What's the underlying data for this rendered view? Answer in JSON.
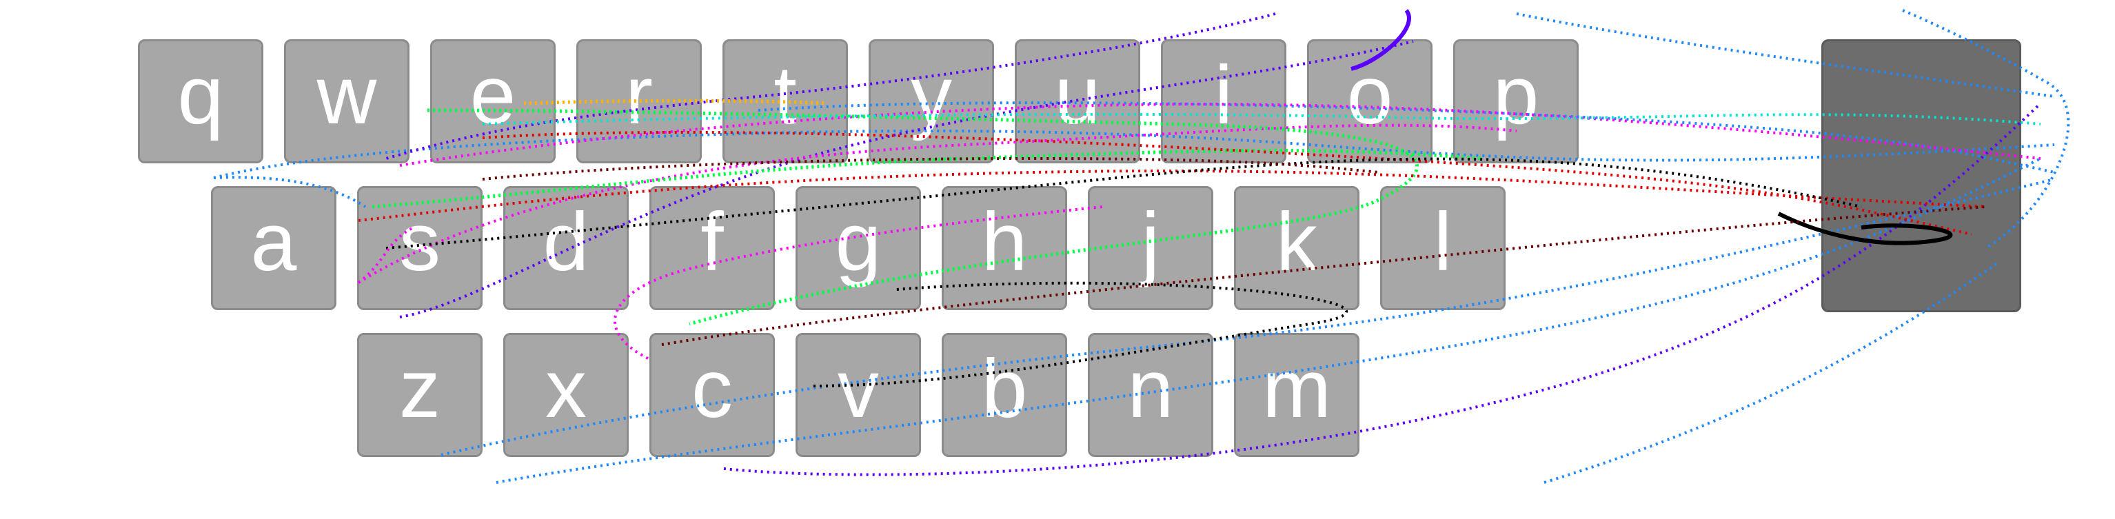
{
  "keyboard": {
    "row1": [
      "q",
      "w",
      "e",
      "r",
      "t",
      "y",
      "u",
      "i",
      "o",
      "p"
    ],
    "row2": [
      "a",
      "s",
      "d",
      "f",
      "g",
      "h",
      "j",
      "k",
      "l"
    ],
    "row3": [
      "z",
      "x",
      "c",
      "v",
      "b",
      "n",
      "m"
    ],
    "backspace_label": ""
  },
  "colors": {
    "key_fill": "#a7a7a7",
    "key_border": "#8b8b8b",
    "key_text": "#ffffff",
    "backspace_fill": "#6d6d6d"
  },
  "trace_colors": [
    "#1e88ff",
    "#5a00ff",
    "#ff00ff",
    "#00ff44",
    "#e00000",
    "#000000",
    "#00e5d0",
    "#6a0000",
    "#ffb300",
    "#8a2be2"
  ]
}
